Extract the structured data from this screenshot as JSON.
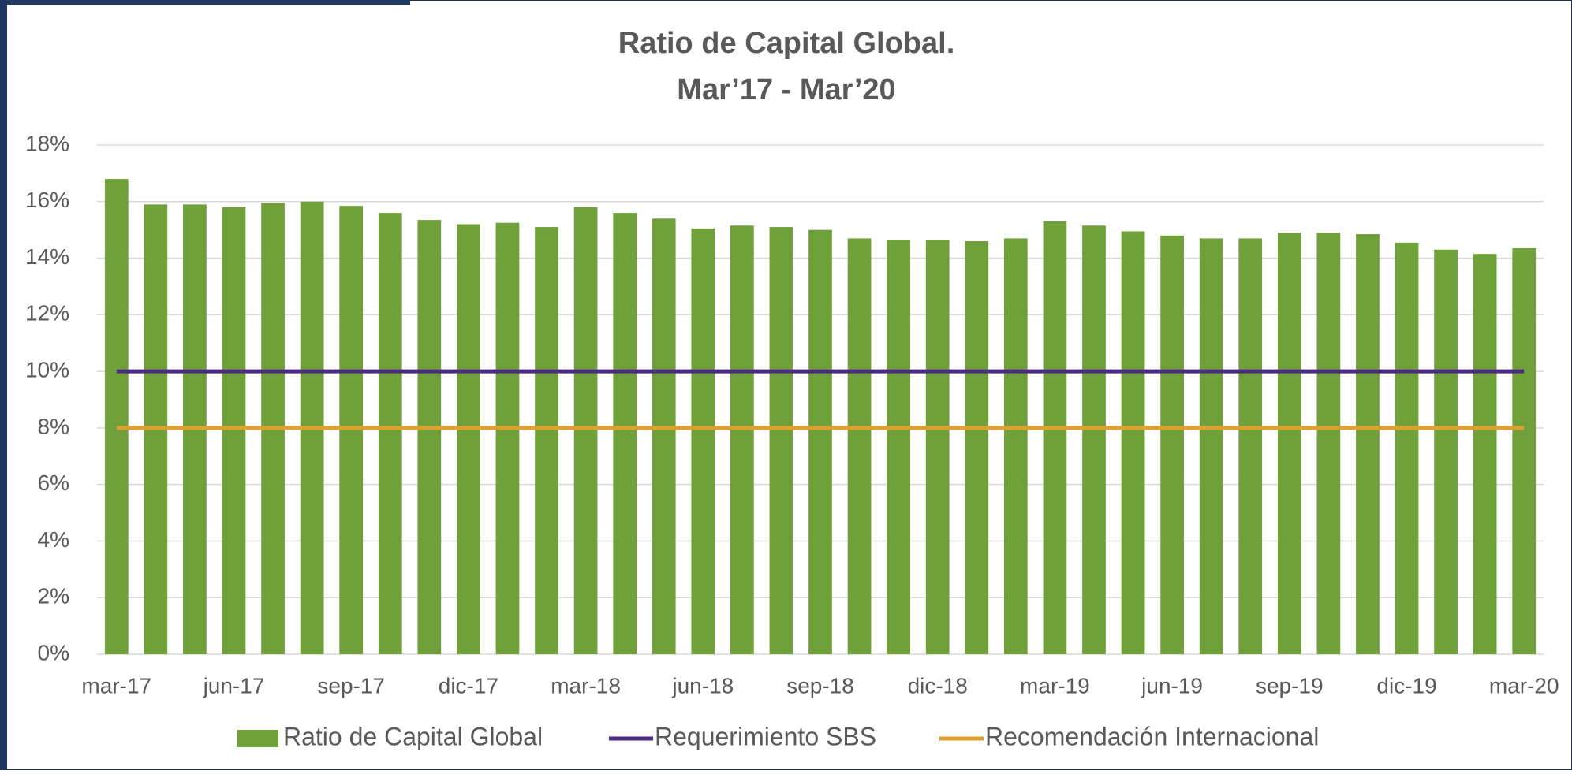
{
  "chart_data": {
    "type": "bar",
    "title": "Ratio de Capital Global.",
    "subtitle": "Mar’17 - Mar’20",
    "categories": [
      "mar-17",
      null,
      null,
      "jun-17",
      null,
      null,
      "sep-17",
      null,
      null,
      "dic-17",
      null,
      null,
      "mar-18",
      null,
      null,
      "jun-18",
      null,
      null,
      "sep-18",
      null,
      null,
      "dic-18",
      null,
      null,
      "mar-19",
      null,
      null,
      "jun-19",
      null,
      null,
      "sep-19",
      null,
      null,
      "dic-19",
      null,
      null,
      "mar-20"
    ],
    "series": [
      {
        "name": "Ratio de Capital Global",
        "type": "bar",
        "color": "#70a03a",
        "values": [
          16.8,
          15.9,
          15.9,
          15.8,
          15.95,
          16.0,
          15.85,
          15.6,
          15.35,
          15.2,
          15.25,
          15.1,
          15.8,
          15.6,
          15.4,
          15.05,
          15.15,
          15.1,
          15.0,
          14.7,
          14.65,
          14.65,
          14.6,
          14.7,
          15.3,
          15.15,
          14.95,
          14.8,
          14.7,
          14.7,
          14.9,
          14.9,
          14.85,
          14.55,
          14.3,
          14.15,
          14.35
        ]
      },
      {
        "name": "Requerimiento SBS",
        "type": "line",
        "color": "#4b2c7f",
        "values": [
          10,
          10,
          10,
          10,
          10,
          10,
          10,
          10,
          10,
          10,
          10,
          10,
          10,
          10,
          10,
          10,
          10,
          10,
          10,
          10,
          10,
          10,
          10,
          10,
          10,
          10,
          10,
          10,
          10,
          10,
          10,
          10,
          10,
          10,
          10,
          10,
          10
        ]
      },
      {
        "name": "Recomendación Internacional",
        "type": "line",
        "color": "#e0a030",
        "values": [
          8,
          8,
          8,
          8,
          8,
          8,
          8,
          8,
          8,
          8,
          8,
          8,
          8,
          8,
          8,
          8,
          8,
          8,
          8,
          8,
          8,
          8,
          8,
          8,
          8,
          8,
          8,
          8,
          8,
          8,
          8,
          8,
          8,
          8,
          8,
          8,
          8
        ]
      }
    ],
    "ylim": [
      0,
      18
    ],
    "yticks": [
      {
        "value": 0,
        "label": "0%"
      },
      {
        "value": 2,
        "label": "2%"
      },
      {
        "value": 4,
        "label": "4%"
      },
      {
        "value": 6,
        "label": "6%"
      },
      {
        "value": 8,
        "label": "8%"
      },
      {
        "value": 10,
        "label": "10%"
      },
      {
        "value": 12,
        "label": "12%"
      },
      {
        "value": 14,
        "label": "14%"
      },
      {
        "value": 16,
        "label": "16%"
      },
      {
        "value": 18,
        "label": "18%"
      }
    ],
    "grid": true,
    "legend": "bottom"
  }
}
